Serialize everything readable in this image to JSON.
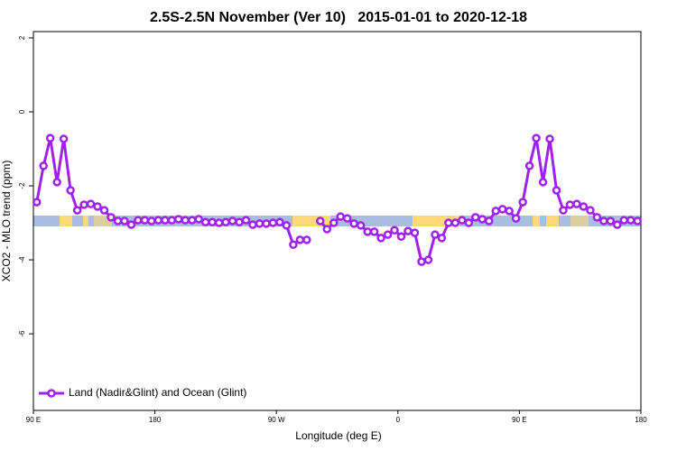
{
  "chart_data": {
    "type": "line",
    "title": "2.5S-2.5N November (Ver 10)   2015-01-01 to 2020-12-18",
    "x_label": "Longitude (deg E)",
    "y_label": "XCO2 - MLO trend (ppm)",
    "xlim": [
      90,
      540
    ],
    "ylim": [
      -8.07,
      2.17
    ],
    "xticks": [
      {
        "value": 90,
        "label": "90 E"
      },
      180,
      {
        "value": 270,
        "label": "90 W"
      },
      {
        "value": 360,
        "label": "0"
      },
      {
        "value": 450,
        "label": "90 E"
      },
      {
        "value": 540,
        "label": "180"
      }
    ],
    "yticks": [
      2,
      0,
      -2,
      -4,
      -6
    ],
    "legend": "bottom-left",
    "x": [
      92.5,
      97.5,
      102.5,
      107.5,
      112.5,
      117.5,
      122.5,
      127.5,
      132.5,
      137.5,
      142.5,
      147.5,
      152.5,
      157.5,
      162.5,
      167.5,
      172.5,
      177.5,
      182.5,
      187.5,
      192.5,
      197.5,
      202.5,
      207.5,
      212.5,
      217.5,
      222.5,
      227.5,
      232.5,
      237.5,
      242.5,
      247.5,
      252.5,
      257.5,
      262.5,
      267.5,
      272.5,
      277.5,
      282.5,
      287.5,
      292.5,
      297.5,
      302.5,
      307.5,
      312.5,
      317.5,
      322.5,
      327.5,
      332.5,
      337.5,
      342.5,
      347.5,
      352.5,
      357.5,
      362.5,
      367.5,
      372.5,
      377.5,
      382.5,
      387.5,
      392.5,
      397.5,
      402.5,
      407.5,
      412.5,
      417.5,
      422.5,
      427.5,
      432.5,
      437.5,
      442.5,
      447.5,
      452.5,
      457.5,
      462.5,
      467.5,
      472.5,
      477.5,
      482.5,
      487.5,
      492.5,
      497.5,
      502.5,
      507.5,
      512.5,
      517.5,
      522.5,
      527.5,
      532.5,
      537.5
    ],
    "series": [
      {
        "name": "Land (Nadir&Glint) and Ocean (Glint)",
        "color": "#a020f0",
        "values": [
          -2.44,
          -1.46,
          -0.71,
          -1.9,
          -0.73,
          -2.12,
          -2.66,
          -2.51,
          -2.49,
          -2.56,
          -2.66,
          -2.85,
          -2.95,
          -2.95,
          -3.05,
          -2.93,
          -2.93,
          -2.95,
          -2.93,
          -2.93,
          -2.93,
          -2.9,
          -2.93,
          -2.93,
          -2.9,
          -2.98,
          -2.98,
          -3.0,
          -2.98,
          -2.95,
          -2.98,
          -2.93,
          -3.05,
          -3.02,
          -3.02,
          -3.0,
          -2.98,
          -3.07,
          -3.59,
          -3.46,
          -3.46,
          null,
          -2.95,
          -3.17,
          -3.0,
          -2.83,
          -2.88,
          -3.02,
          -3.07,
          -3.24,
          -3.24,
          -3.41,
          -3.32,
          -3.2,
          -3.37,
          -3.22,
          -3.27,
          -4.05,
          -4.0,
          -3.32,
          -3.41,
          -3.0,
          -3.0,
          -2.93,
          -3.0,
          -2.85,
          -2.9,
          -2.95,
          -2.68,
          -2.63,
          -2.68,
          -2.88,
          -2.44,
          -1.46,
          -0.71,
          -1.9,
          -0.73,
          -2.12,
          -2.66,
          -2.51,
          -2.49,
          -2.56,
          -2.66,
          -2.85,
          -2.95,
          -2.95,
          -3.05,
          -2.93,
          -2.93,
          -2.95
        ]
      }
    ]
  }
}
